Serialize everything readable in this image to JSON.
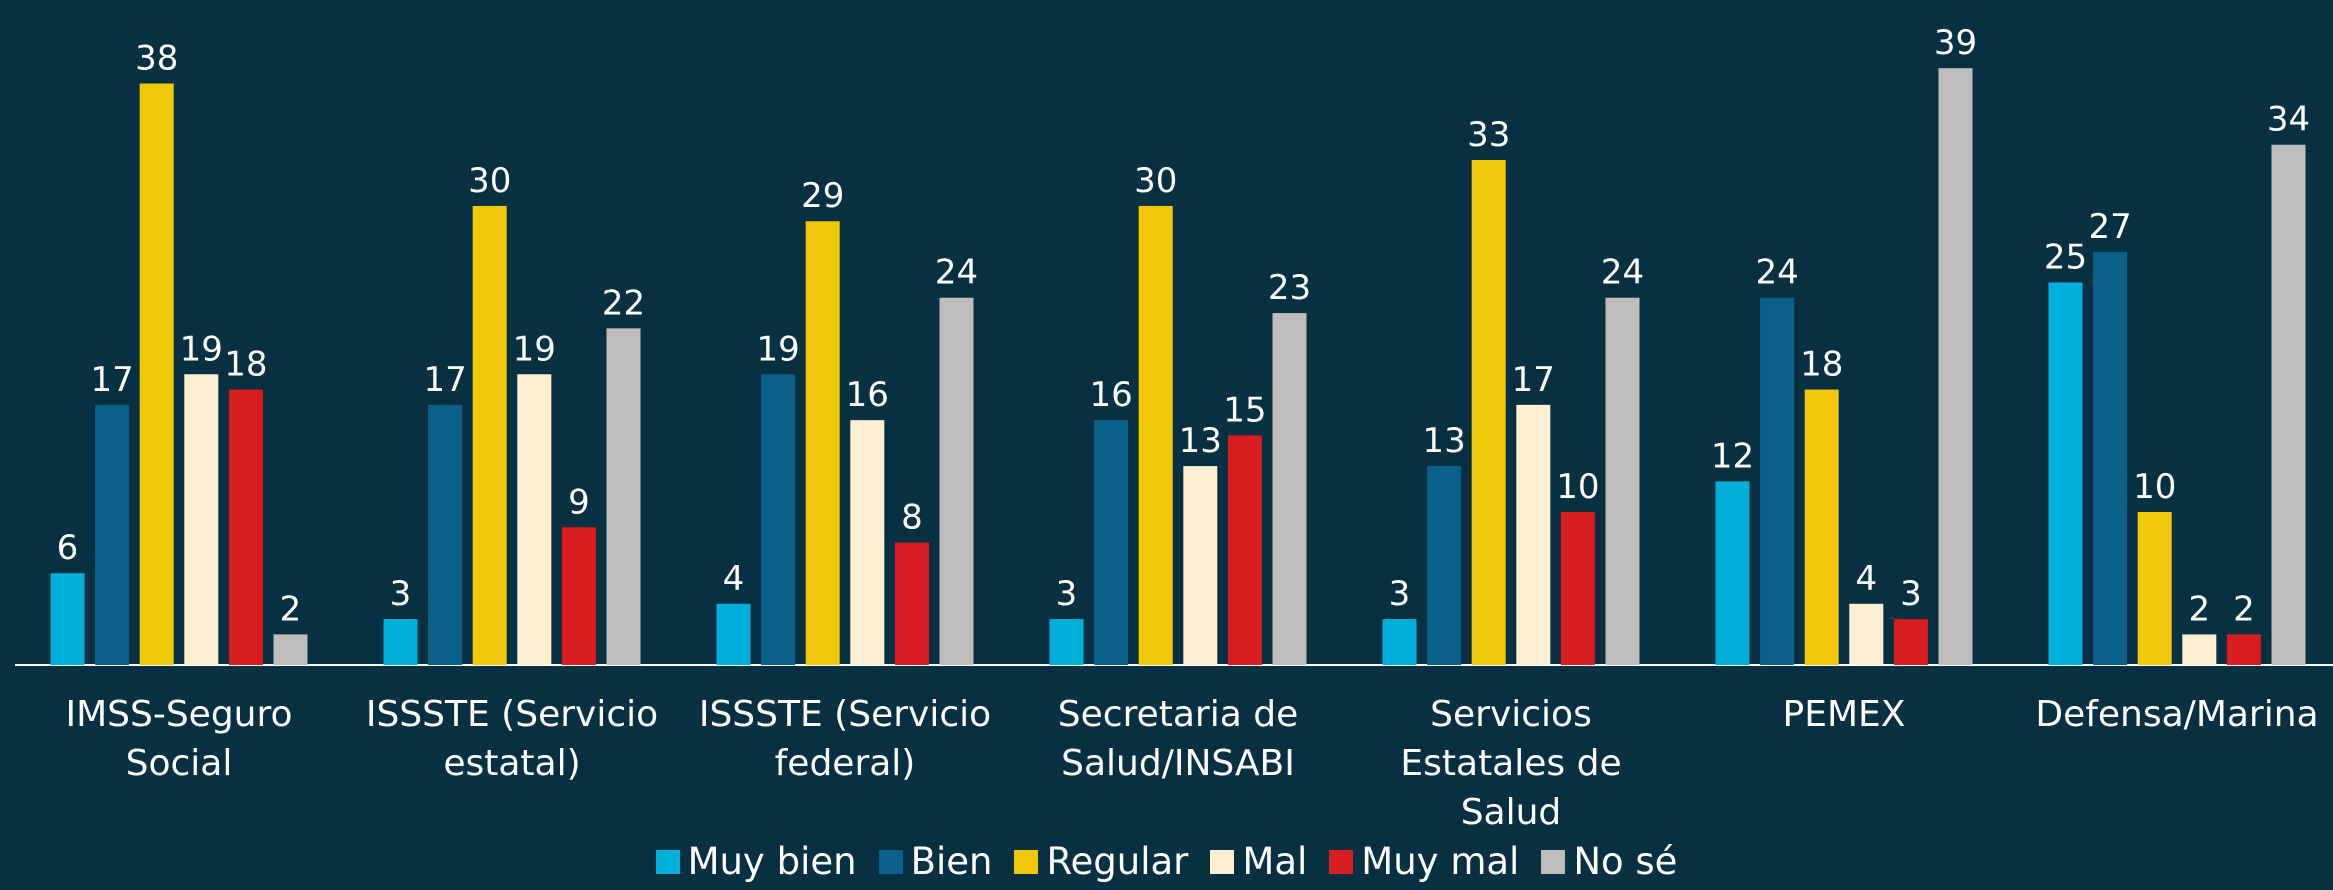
{
  "chart_data": {
    "type": "bar",
    "categories": [
      "IMSS-Seguro\nSocial",
      "ISSSTE (Servicio\nestatal)",
      "ISSSTE (Servicio\nfederal)",
      "Secretaria de\nSalud/INSABI",
      "Servicios\nEstatales de Salud",
      "PEMEX",
      "Defensa/Marina"
    ],
    "series": [
      {
        "name": "Muy bien",
        "color": "#00b0d8",
        "values": [
          6,
          3,
          4,
          3,
          3,
          12,
          25
        ]
      },
      {
        "name": "Bien",
        "color": "#0b6088",
        "values": [
          17,
          17,
          19,
          16,
          13,
          24,
          27
        ]
      },
      {
        "name": "Regular",
        "color": "#f0c808",
        "values": [
          38,
          30,
          29,
          30,
          33,
          18,
          10
        ]
      },
      {
        "name": "Mal",
        "color": "#fdf0d2",
        "values": [
          19,
          19,
          16,
          13,
          17,
          4,
          2
        ]
      },
      {
        "name": "Muy mal",
        "color": "#d81e1e",
        "values": [
          18,
          9,
          8,
          15,
          10,
          3,
          2
        ]
      },
      {
        "name": "No sé",
        "color": "#bdbdbd",
        "values": [
          2,
          22,
          24,
          23,
          24,
          39,
          34
        ]
      }
    ],
    "ylim": [
      0,
      43
    ]
  }
}
